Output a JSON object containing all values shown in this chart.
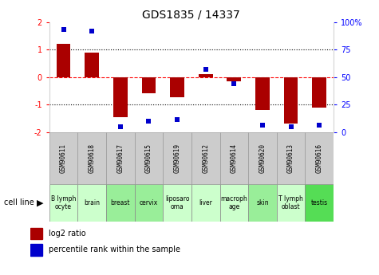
{
  "title": "GDS1835 / 14337",
  "gsm_labels": [
    "GSM90611",
    "GSM90618",
    "GSM90617",
    "GSM90615",
    "GSM90619",
    "GSM90612",
    "GSM90614",
    "GSM90620",
    "GSM90613",
    "GSM90616"
  ],
  "cell_lines": [
    "B lymph\nocyte",
    "brain",
    "breast",
    "cervix",
    "liposaro\noma",
    "liver",
    "macroph\nage",
    "skin",
    "T lymph\noblast",
    "testis"
  ],
  "cell_line_colors": [
    "#ccffcc",
    "#ccffcc",
    "#99ee99",
    "#99ee99",
    "#ccffcc",
    "#ccffcc",
    "#ccffcc",
    "#99ee99",
    "#ccffcc",
    "#55dd55"
  ],
  "log2_ratio": [
    1.2,
    0.9,
    -1.45,
    -0.6,
    -0.75,
    0.1,
    -0.15,
    -1.2,
    -1.7,
    -1.1
  ],
  "percentile_rank": [
    93,
    92,
    5,
    10,
    11,
    57,
    44,
    6,
    5,
    6
  ],
  "ylim": [
    -2,
    2
  ],
  "y2lim": [
    0,
    100
  ],
  "bar_color": "#aa0000",
  "dot_color": "#0000cc",
  "bg_color": "#ffffff",
  "gsm_bg": "#cccccc",
  "bar_width": 0.5
}
